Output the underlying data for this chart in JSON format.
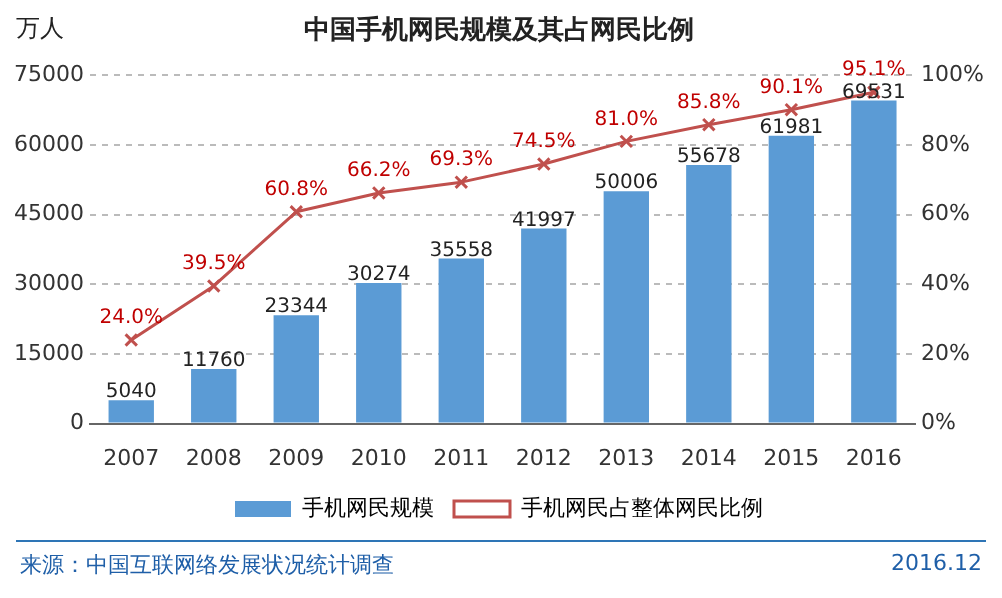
{
  "chart_data": {
    "type": "bar",
    "title": "中国手机网民规模及其占网民比例",
    "ylabel": "万人",
    "categories": [
      "2007",
      "2008",
      "2009",
      "2010",
      "2011",
      "2012",
      "2013",
      "2014",
      "2015",
      "2016"
    ],
    "series": [
      {
        "name": "手机网民规模",
        "color": "#5b9bd5",
        "values": [
          5040,
          11760,
          23344,
          30274,
          35558,
          41997,
          50006,
          55678,
          61981,
          69531
        ],
        "value_labels": [
          "5040",
          "11760",
          "23344",
          "30274",
          "35558",
          "41997",
          "50006",
          "55678",
          "61981",
          "69531"
        ]
      },
      {
        "name": "手机网民占整体网民比例",
        "type": "line",
        "axis": "y2",
        "color": "#c0504d",
        "marker": "cross",
        "values": [
          24.0,
          39.5,
          60.8,
          66.2,
          69.3,
          74.5,
          81.0,
          85.8,
          90.1,
          95.1
        ],
        "value_labels": [
          "24.0%",
          "39.5%",
          "60.8%",
          "66.2%",
          "69.3%",
          "74.5%",
          "81.0%",
          "85.8%",
          "90.1%",
          "95.1%"
        ]
      }
    ],
    "ylim": [
      0,
      75000
    ],
    "yticks": [
      0,
      15000,
      30000,
      45000,
      60000,
      75000
    ],
    "y2lim": [
      0,
      100
    ],
    "y2ticks": [
      {
        "value": 0,
        "label": "0%"
      },
      {
        "value": 20,
        "label": "20%"
      },
      {
        "value": 40,
        "label": "40%"
      },
      {
        "value": 60,
        "label": "60%"
      },
      {
        "value": 80,
        "label": "80%"
      },
      {
        "value": 100,
        "label": "100%"
      }
    ],
    "grid": "y",
    "legend": "bottom",
    "annotations": [
      "来源：中国互联网络发展状况统计调查",
      "2016.12"
    ]
  }
}
